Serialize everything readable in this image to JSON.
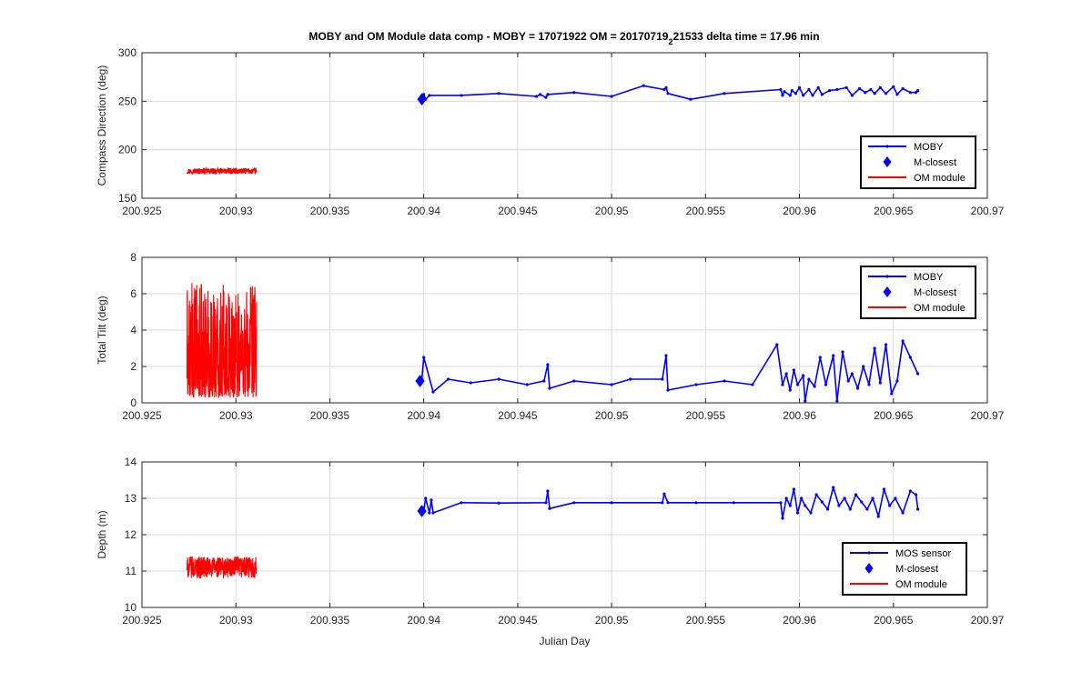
{
  "figure": {
    "title_main": "MOBY and OM Module data comp - MOBY = 17071922 OM = 20170719",
    "title_sub": "2",
    "title_rest": "21533 delta time = 17.96 min",
    "xlabel": "Julian Day"
  },
  "colors": {
    "moby": "#0000ff",
    "om": "#ff0000",
    "grid": "#d9d9d9",
    "axis": "#262626"
  },
  "chart_data": [
    {
      "type": "line",
      "title": "",
      "xlabel": "",
      "ylabel": "Compass Direction (deg)",
      "xlim": [
        200.925,
        200.97
      ],
      "ylim": [
        150,
        300
      ],
      "xticks": [
        200.925,
        200.93,
        200.935,
        200.94,
        200.945,
        200.95,
        200.955,
        200.96,
        200.965,
        200.97
      ],
      "xticklabels": [
        "200.925",
        "200.93",
        "200.935",
        "200.94",
        "200.945",
        "200.95",
        "200.955",
        "200.96",
        "200.965",
        "200.97"
      ],
      "yticks": [
        150,
        200,
        250,
        300
      ],
      "yticklabels": [
        "150",
        "200",
        "250",
        "300"
      ],
      "grid": true,
      "legend": {
        "location": "bottom-right",
        "entries": [
          "MOBY",
          "M-closest",
          "OM module"
        ]
      },
      "series": [
        {
          "name": "MOBY",
          "style": "line-dot",
          "x": [
            200.94,
            200.9401,
            200.9403,
            200.942,
            200.944,
            200.946,
            200.9462,
            200.9465,
            200.9466,
            200.948,
            200.95,
            200.9517,
            200.9528,
            200.9529,
            200.953,
            200.9542,
            200.956,
            200.959,
            200.9591,
            200.9592,
            200.9595,
            200.9596,
            200.9598,
            200.96,
            200.9602,
            200.9605,
            200.9607,
            200.961,
            200.9612,
            200.9616,
            200.962,
            200.9625,
            200.9628,
            200.9632,
            200.9635,
            200.9638,
            200.964,
            200.9643,
            200.9646,
            200.965,
            200.9652,
            200.9655,
            200.9659,
            200.9662,
            200.9663
          ],
          "y": [
            257,
            252,
            256,
            256,
            258,
            255,
            257,
            254,
            257,
            259,
            255,
            266,
            262,
            264,
            258,
            252,
            258,
            262,
            256,
            260,
            256,
            261,
            258,
            264,
            256,
            262,
            256,
            264,
            257,
            261,
            262,
            264,
            256,
            263,
            259,
            262,
            258,
            264,
            258,
            265,
            257,
            263,
            259,
            259,
            261
          ]
        },
        {
          "name": "M-closest",
          "style": "diamond",
          "x": [
            200.9399
          ],
          "y": [
            252
          ]
        },
        {
          "name": "OM module",
          "style": "noise",
          "x_range": [
            200.9274,
            200.9311
          ],
          "y_center": 178,
          "y_amplitude": 3,
          "y_min": 173,
          "y_max": 182
        }
      ]
    },
    {
      "type": "line",
      "title": "",
      "xlabel": "",
      "ylabel": "Total Tilt (deg)",
      "xlim": [
        200.925,
        200.97
      ],
      "ylim": [
        0,
        8
      ],
      "xticks": [
        200.925,
        200.93,
        200.935,
        200.94,
        200.945,
        200.95,
        200.955,
        200.96,
        200.965,
        200.97
      ],
      "xticklabels": [
        "200.925",
        "200.93",
        "200.935",
        "200.94",
        "200.945",
        "200.95",
        "200.955",
        "200.96",
        "200.965",
        "200.97"
      ],
      "yticks": [
        0,
        2,
        4,
        6,
        8
      ],
      "yticklabels": [
        "0",
        "2",
        "4",
        "6",
        "8"
      ],
      "grid": true,
      "legend": {
        "location": "top-right",
        "entries": [
          "MOBY",
          "M-closest",
          "OM module"
        ]
      },
      "series": [
        {
          "name": "MOBY",
          "style": "line-dot",
          "x": [
            200.9399,
            200.94,
            200.9405,
            200.9413,
            200.9425,
            200.944,
            200.9455,
            200.9464,
            200.9466,
            200.9467,
            200.948,
            200.95,
            200.951,
            200.9527,
            200.9529,
            200.953,
            200.9545,
            200.956,
            200.9575,
            200.9588,
            200.9591,
            200.9593,
            200.9595,
            200.9597,
            200.9599,
            200.9602,
            200.9603,
            200.9605,
            200.9608,
            200.9611,
            200.9614,
            200.9618,
            200.962,
            200.9623,
            200.9626,
            200.9628,
            200.9631,
            200.9634,
            200.9637,
            200.964,
            200.9643,
            200.9646,
            200.9649,
            200.9652,
            200.9655,
            200.9659,
            200.9663
          ],
          "y": [
            1.3,
            2.5,
            0.6,
            1.3,
            1.1,
            1.3,
            1.0,
            1.2,
            2.1,
            0.8,
            1.2,
            1.0,
            1.3,
            1.3,
            2.6,
            0.7,
            1.0,
            1.2,
            1.0,
            3.2,
            1.0,
            1.6,
            0.7,
            1.8,
            1.0,
            1.5,
            0.1,
            1.3,
            0.9,
            2.5,
            1.0,
            2.6,
            0.1,
            2.8,
            1.2,
            1.6,
            0.8,
            2.0,
            1.0,
            3.0,
            1.1,
            3.2,
            0.5,
            1.2,
            3.4,
            2.5,
            1.6
          ]
        },
        {
          "name": "M-closest",
          "style": "diamond",
          "x": [
            200.9398
          ],
          "y": [
            1.2
          ]
        },
        {
          "name": "OM module",
          "style": "noise",
          "x_range": [
            200.9274,
            200.9311
          ],
          "y_center": 2.0,
          "y_amplitude": 2.0,
          "y_min": 0.3,
          "y_max": 6.6
        }
      ]
    },
    {
      "type": "line",
      "title": "",
      "xlabel": "Julian Day",
      "ylabel": "Depth (m)",
      "xlim": [
        200.925,
        200.97
      ],
      "ylim": [
        10,
        14
      ],
      "xticks": [
        200.925,
        200.93,
        200.935,
        200.94,
        200.945,
        200.95,
        200.955,
        200.96,
        200.965,
        200.97
      ],
      "xticklabels": [
        "200.925",
        "200.93",
        "200.935",
        "200.94",
        "200.945",
        "200.95",
        "200.955",
        "200.96",
        "200.965",
        "200.97"
      ],
      "yticks": [
        10,
        11,
        12,
        13,
        14
      ],
      "yticklabels": [
        "10",
        "11",
        "12",
        "13",
        "14"
      ],
      "grid": true,
      "legend": {
        "location": "bottom-right",
        "entries": [
          "MOS sensor",
          "M-closest",
          "OM module"
        ]
      },
      "series": [
        {
          "name": "MOS sensor",
          "style": "line-dot",
          "x": [
            200.94,
            200.9401,
            200.9403,
            200.9404,
            200.9405,
            200.942,
            200.944,
            200.9465,
            200.9466,
            200.9467,
            200.948,
            200.95,
            200.9527,
            200.9528,
            200.953,
            200.9545,
            200.9565,
            200.959,
            200.9591,
            200.9593,
            200.9595,
            200.9597,
            200.9599,
            200.9601,
            200.9603,
            200.9606,
            200.9609,
            200.9612,
            200.9615,
            200.9618,
            200.9621,
            200.9624,
            200.9627,
            200.963,
            200.9633,
            200.9636,
            200.9639,
            200.9642,
            200.9645,
            200.9648,
            200.9651,
            200.9655,
            200.9659,
            200.9662,
            200.9663
          ],
          "y": [
            12.65,
            13.0,
            12.6,
            12.95,
            12.6,
            12.88,
            12.87,
            12.88,
            13.2,
            12.72,
            12.88,
            12.88,
            12.88,
            13.12,
            12.88,
            12.88,
            12.88,
            12.88,
            12.45,
            13.0,
            12.8,
            13.25,
            12.6,
            13.0,
            12.8,
            12.6,
            13.1,
            12.9,
            12.7,
            13.3,
            12.8,
            13.0,
            12.7,
            13.1,
            12.9,
            12.7,
            13.0,
            12.5,
            13.25,
            12.8,
            13.0,
            12.6,
            13.2,
            13.1,
            12.7
          ]
        },
        {
          "name": "M-closest",
          "style": "diamond",
          "x": [
            200.9399
          ],
          "y": [
            12.65
          ]
        },
        {
          "name": "OM module",
          "style": "noise",
          "x_range": [
            200.9274,
            200.9311
          ],
          "y_center": 11.1,
          "y_amplitude": 0.3,
          "y_min": 10.4,
          "y_max": 11.75
        }
      ]
    }
  ]
}
